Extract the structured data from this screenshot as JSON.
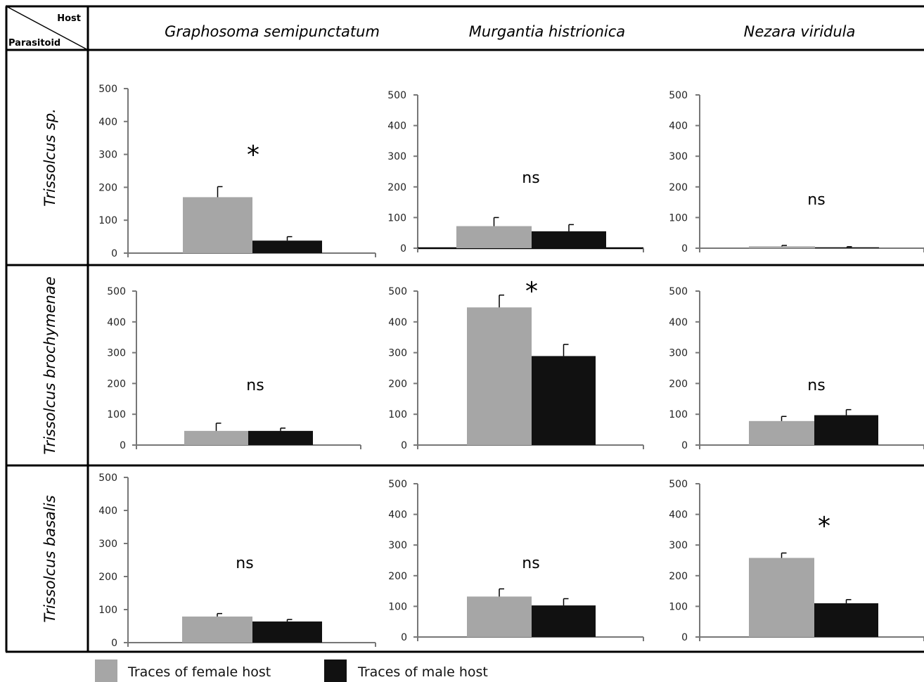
{
  "header": {
    "corner_top": "Host",
    "corner_bottom": "Parasitoid",
    "hosts": [
      "Graphosoma semipunctatum",
      "Murgantia histrionica",
      "Nezara viridula"
    ],
    "parasitoids": [
      "Trissolcus sp.",
      "Trissolcus brochymenae",
      "Trissolcus basalis"
    ]
  },
  "legend": {
    "items": [
      {
        "label": "Traces of female host",
        "color": "#a6a6a6"
      },
      {
        "label": "Traces of male host",
        "color": "#111111"
      }
    ]
  },
  "chart_data": {
    "type": "bar",
    "y_ticks": [
      "0",
      "100",
      "200",
      "300",
      "400",
      "500"
    ],
    "ylim": [
      0,
      500
    ],
    "series_colors": [
      "#a6a6a6",
      "#111111"
    ],
    "panels": [
      {
        "parasitoid": "Trissolcus sp.",
        "host": "Graphosoma semipunctatum",
        "values": [
          170,
          38
        ],
        "errors": [
          32,
          12
        ],
        "annotation": "*"
      },
      {
        "parasitoid": "Trissolcus sp.",
        "host": "Murgantia histrionica",
        "values": [
          72,
          55
        ],
        "errors": [
          28,
          22
        ],
        "annotation": "ns"
      },
      {
        "parasitoid": "Trissolcus sp.",
        "host": "Nezara viridula",
        "values": [
          6,
          3
        ],
        "errors": [
          3,
          2
        ],
        "annotation": "ns"
      },
      {
        "parasitoid": "Trissolcus brochymenae",
        "host": "Graphosoma semipunctatum",
        "values": [
          46,
          46
        ],
        "errors": [
          25,
          9
        ],
        "annotation": "ns"
      },
      {
        "parasitoid": "Trissolcus brochymenae",
        "host": "Murgantia histrionica",
        "values": [
          447,
          289
        ],
        "errors": [
          40,
          38
        ],
        "annotation": "*"
      },
      {
        "parasitoid": "Trissolcus brochymenae",
        "host": "Nezara viridula",
        "values": [
          78,
          97
        ],
        "errors": [
          15,
          18
        ],
        "annotation": "ns"
      },
      {
        "parasitoid": "Trissolcus basalis",
        "host": "Graphosoma semipunctatum",
        "values": [
          79,
          64
        ],
        "errors": [
          9,
          6
        ],
        "annotation": "ns"
      },
      {
        "parasitoid": "Trissolcus basalis",
        "host": "Murgantia histrionica",
        "values": [
          132,
          103
        ],
        "errors": [
          25,
          22
        ],
        "annotation": "ns"
      },
      {
        "parasitoid": "Trissolcus basalis",
        "host": "Nezara viridula",
        "values": [
          258,
          110
        ],
        "errors": [
          16,
          12
        ],
        "annotation": "*"
      }
    ]
  }
}
